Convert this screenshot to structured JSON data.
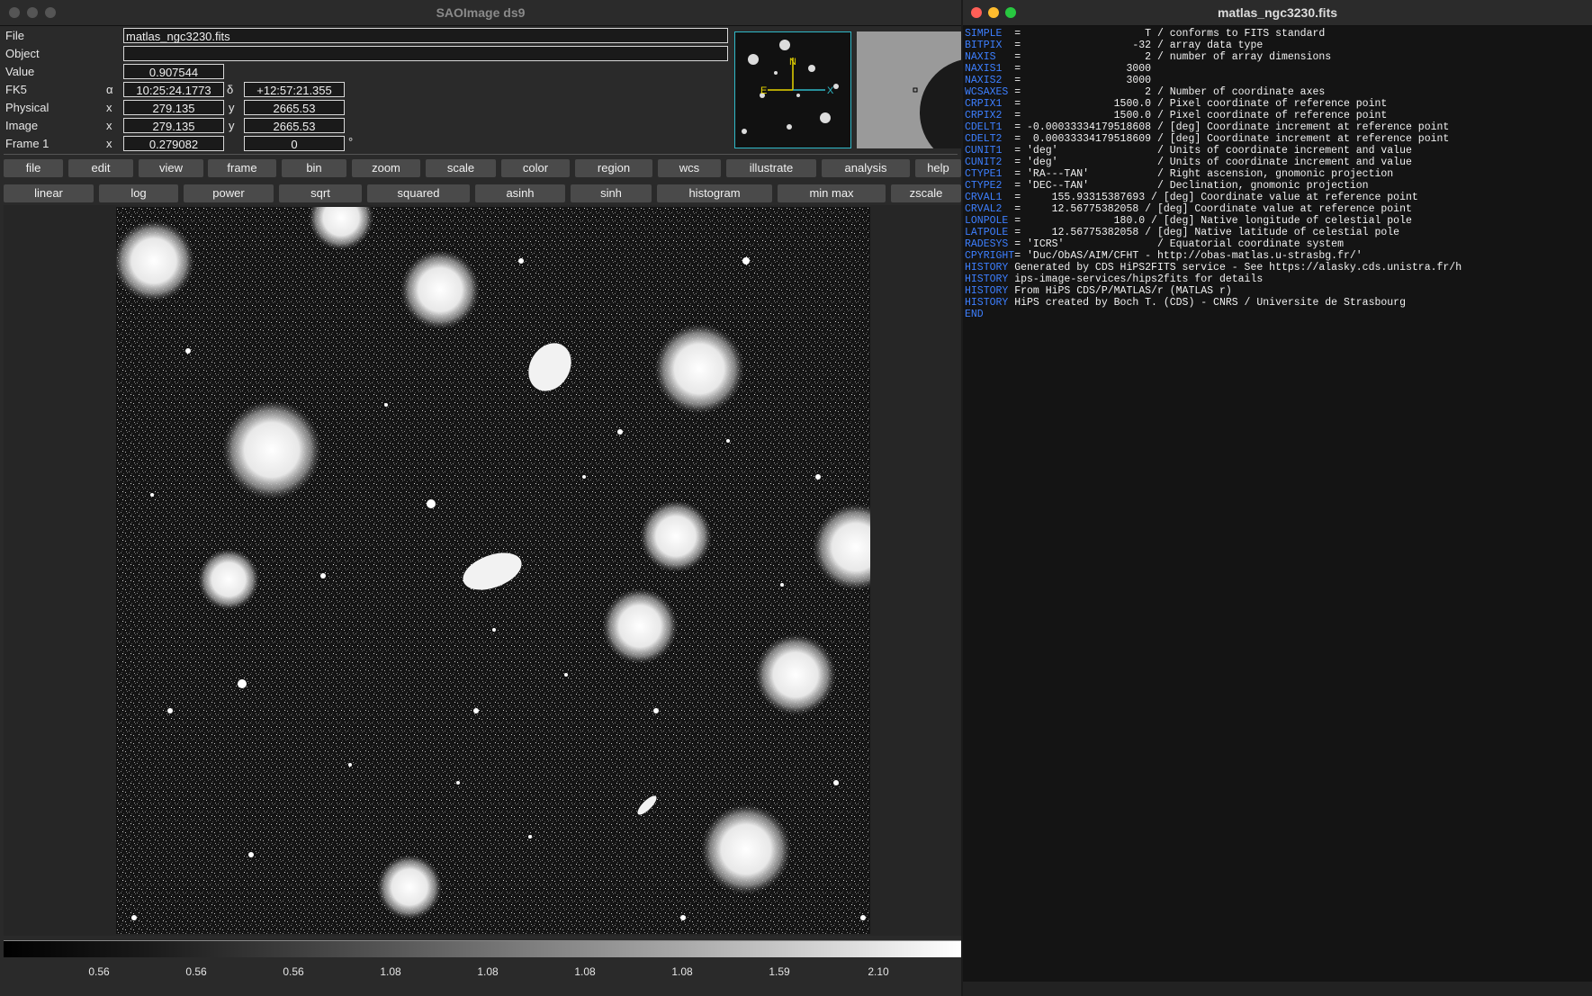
{
  "ds9": {
    "title": "SAOImage ds9",
    "info": {
      "file_label": "File",
      "file_value": "matlas_ngc3230.fits",
      "object_label": "Object",
      "object_value": "",
      "value_label": "Value",
      "value_value": "0.907544",
      "fk5_label": "FK5",
      "fk5_alpha_sym": "α",
      "fk5_alpha": "10:25:24.1773",
      "fk5_delta_sym": "δ",
      "fk5_delta": "+12:57:21.355",
      "physical_label": "Physical",
      "physical_x_sym": "x",
      "physical_x": "279.135",
      "physical_y_sym": "y",
      "physical_y": "2665.53",
      "image_label": "Image",
      "image_x_sym": "x",
      "image_x": "279.135",
      "image_y_sym": "y",
      "image_y": "2665.53",
      "frame_label": "Frame 1",
      "frame_x_sym": "x",
      "frame_zoom": "0.279082",
      "frame_angle": "0",
      "degree_sym": "°"
    },
    "panner_labels": {
      "n": "N",
      "e": "E",
      "x": "X"
    },
    "menu": [
      "file",
      "edit",
      "view",
      "frame",
      "bin",
      "zoom",
      "scale",
      "color",
      "region",
      "wcs",
      "illustrate",
      "analysis",
      "help"
    ],
    "scale_buttons": [
      "linear",
      "log",
      "power",
      "sqrt",
      "squared",
      "asinh",
      "sinh",
      "histogram",
      "min max",
      "zscale"
    ],
    "colorbar_ticks": [
      "0.56",
      "0.56",
      "0.56",
      "1.08",
      "1.08",
      "1.08",
      "1.08",
      "1.59",
      "2.10"
    ]
  },
  "header": {
    "title": "matlas_ngc3230.fits",
    "lines": [
      {
        "k": "SIMPLE  ",
        "v": "=                    T / conforms to FITS standard"
      },
      {
        "k": "BITPIX  ",
        "v": "=                  -32 / array data type"
      },
      {
        "k": "NAXIS   ",
        "v": "=                    2 / number of array dimensions"
      },
      {
        "k": "NAXIS1  ",
        "v": "=                 3000"
      },
      {
        "k": "NAXIS2  ",
        "v": "=                 3000"
      },
      {
        "k": "WCSAXES ",
        "v": "=                    2 / Number of coordinate axes"
      },
      {
        "k": "CRPIX1  ",
        "v": "=               1500.0 / Pixel coordinate of reference point"
      },
      {
        "k": "CRPIX2  ",
        "v": "=               1500.0 / Pixel coordinate of reference point"
      },
      {
        "k": "CDELT1  ",
        "v": "= -0.00033334179518608 / [deg] Coordinate increment at reference point"
      },
      {
        "k": "CDELT2  ",
        "v": "=  0.00033334179518609 / [deg] Coordinate increment at reference point"
      },
      {
        "k": "CUNIT1  ",
        "v": "= 'deg'                / Units of coordinate increment and value"
      },
      {
        "k": "CUNIT2  ",
        "v": "= 'deg'                / Units of coordinate increment and value"
      },
      {
        "k": "CTYPE1  ",
        "v": "= 'RA---TAN'           / Right ascension, gnomonic projection"
      },
      {
        "k": "CTYPE2  ",
        "v": "= 'DEC--TAN'           / Declination, gnomonic projection"
      },
      {
        "k": "CRVAL1  ",
        "v": "=     155.93315387693 / [deg] Coordinate value at reference point"
      },
      {
        "k": "CRVAL2  ",
        "v": "=     12.56775382058 / [deg] Coordinate value at reference point"
      },
      {
        "k": "LONPOLE ",
        "v": "=               180.0 / [deg] Native longitude of celestial pole"
      },
      {
        "k": "LATPOLE ",
        "v": "=     12.56775382058 / [deg] Native latitude of celestial pole"
      },
      {
        "k": "RADESYS ",
        "v": "= 'ICRS'               / Equatorial coordinate system"
      },
      {
        "k": "CPYRIGHT",
        "v": "= 'Duc/ObAS/AIM/CFHT - http://obas-matlas.u-strasbg.fr/'"
      },
      {
        "k": "HISTORY ",
        "v": "Generated by CDS HiPS2FITS service - See https://alasky.cds.unistra.fr/h"
      },
      {
        "k": "HISTORY ",
        "v": "ips-image-services/hips2fits for details"
      },
      {
        "k": "HISTORY ",
        "v": "From HiPS CDS/P/MATLAS/r (MATLAS r)"
      },
      {
        "k": "HISTORY ",
        "v": "HiPS created by Boch T. (CDS) - CNRS / Universite de Strasbourg"
      },
      {
        "k": "END",
        "v": ""
      }
    ]
  }
}
